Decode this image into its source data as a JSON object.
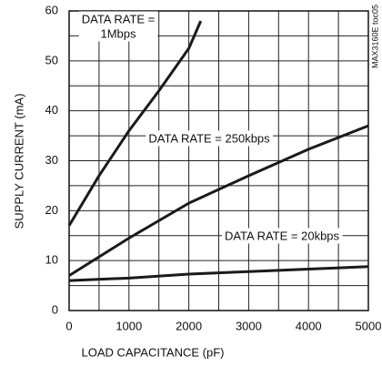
{
  "chart_data": {
    "type": "line",
    "xlabel": "LOAD CAPACITANCE (pF)",
    "ylabel": "SUPPLY CURRENT (mA)",
    "figure_id": "MAX3160E toc05",
    "xlim": [
      0,
      5000
    ],
    "xticks": [
      0,
      1000,
      2000,
      3000,
      4000,
      5000
    ],
    "ylim": [
      0,
      60
    ],
    "yticks": [
      0,
      10,
      20,
      30,
      40,
      50,
      60
    ],
    "grid": true,
    "series": [
      {
        "name": "1Mbps",
        "color": "#1a1a1a",
        "x": [
          0,
          500,
          1000,
          1500,
          2000,
          2200
        ],
        "values": [
          17,
          27,
          36,
          44,
          52.5,
          58
        ]
      },
      {
        "name": "250kbps",
        "color": "#1a1a1a",
        "x": [
          0,
          1000,
          2000,
          3000,
          4000,
          5000
        ],
        "values": [
          7,
          14.5,
          21.5,
          27,
          32.3,
          37
        ]
      },
      {
        "name": "20kbps",
        "color": "#1a1a1a",
        "x": [
          0,
          1000,
          2000,
          3000,
          4000,
          5000
        ],
        "values": [
          6,
          6.5,
          7.3,
          7.8,
          8.3,
          8.8
        ]
      }
    ],
    "annotations": [
      {
        "lines": [
          "DATA RATE =",
          "1Mbps"
        ]
      },
      {
        "lines": [
          "DATA RATE = 250kbps"
        ]
      },
      {
        "lines": [
          "DATA RATE = 20kbps"
        ]
      }
    ]
  }
}
